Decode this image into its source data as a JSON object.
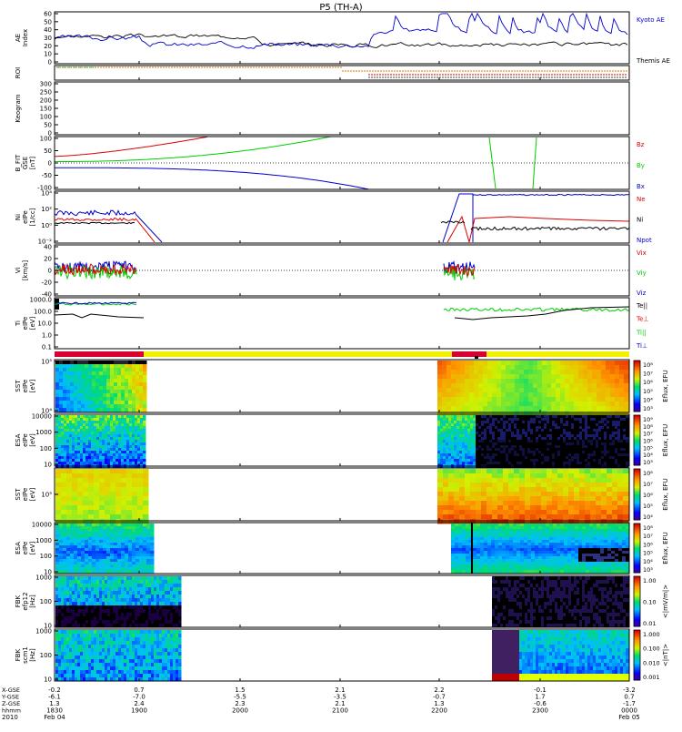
{
  "title": "P5 (TH-A)",
  "colors": {
    "red": "#dd0000",
    "green": "#00cc00",
    "blue": "#0000cc",
    "black": "#000000",
    "orange": "#e07800",
    "yellow": "#f2f200",
    "barred": "#d80030"
  },
  "chart_data": {
    "type": "multi-panel time series",
    "time_axis": {
      "range": [
        "1830",
        "0000"
      ],
      "ticks": [
        "1900",
        "2000",
        "2100",
        "2200",
        "2300",
        "0000"
      ],
      "dates": {
        "start": "Feb 04",
        "end": "Feb 05"
      },
      "year": "2010",
      "row_labels": [
        "X-GSE",
        "Y-GSE",
        "Z-GSE",
        "hhmm"
      ],
      "ephemeris": [
        {
          "time": "1830",
          "x": "-0.2",
          "y": "-6.1",
          "z": "1.3"
        },
        {
          "time": "1900",
          "x": "0.7",
          "y": "-7.0",
          "z": "2.4"
        },
        {
          "time": "2000",
          "x": "1.5",
          "y": "-5.5",
          "z": "2.3"
        },
        {
          "time": "2100",
          "x": "2.1",
          "y": "-3.5",
          "z": "2.1"
        },
        {
          "time": "2200",
          "x": "2.2",
          "y": "-0.7",
          "z": "1.3"
        },
        {
          "time": "2300",
          "x": "-0.1",
          "y": "1.7",
          "z": "-0.6"
        },
        {
          "time": "0000",
          "x": "-3.2",
          "y": "0.7",
          "z": "-1.7"
        }
      ]
    },
    "panels": [
      {
        "id": "ae",
        "ylabel": "AE Index",
        "yticks": [
          "60",
          "50",
          "40",
          "30",
          "20",
          "10",
          "0"
        ],
        "legend": [
          "Kyoto AE",
          "Themis AE"
        ],
        "type": "line"
      },
      {
        "id": "roi",
        "ylabel": "ROI",
        "type": "status"
      },
      {
        "id": "keogram",
        "ylabel": "Keogram",
        "yticks": [
          "300",
          "250",
          "200",
          "150",
          "100",
          "50",
          "0"
        ],
        "type": "empty"
      },
      {
        "id": "bfit",
        "ylabel": "B_FIT GSE [nT]",
        "yticks": [
          "100",
          "50",
          "0",
          "-50",
          "-100"
        ],
        "legend": [
          "Bz",
          "By",
          "Bx"
        ],
        "type": "line"
      },
      {
        "id": "ni",
        "ylabel": "Ni eIPe [1/cc]",
        "yticks": [
          "10⁴",
          "10²",
          "10⁰",
          "10⁻²"
        ],
        "legend": [
          "Ne",
          "Ni",
          "Npot"
        ],
        "type": "line",
        "scale": "log"
      },
      {
        "id": "vi",
        "ylabel": "Vi [km/s]",
        "yticks": [
          "40",
          "20",
          "0",
          "-20",
          "-40"
        ],
        "legend": [
          "Vix",
          "Viy",
          "Viz"
        ],
        "type": "line"
      },
      {
        "id": "ti",
        "ylabel": "Ti eIPe [eV]",
        "yticks": [
          "1000.0",
          "100.0",
          "10.0",
          "1.0",
          "0.1"
        ],
        "legend": [
          "Te||",
          "Te⊥",
          "Ti||",
          "Ti⊥"
        ],
        "type": "line",
        "scale": "log"
      },
      {
        "id": "sst_e",
        "ylabel": "SST eIPe [eV]",
        "yticks": [
          "10⁵",
          "10⁴"
        ],
        "colorbar": {
          "label": "Eflux, EFU",
          "ticks": [
            "10⁸",
            "10⁷",
            "10⁶",
            "10⁵",
            "10⁴",
            "10³"
          ]
        },
        "type": "spectrogram"
      },
      {
        "id": "esa_e",
        "ylabel": "ESA eIPe [eV]",
        "yticks": [
          "10000",
          "1000",
          "100",
          "10"
        ],
        "colorbar": {
          "label": "Eflux, EFU",
          "ticks": [
            "10⁹",
            "10⁸",
            "10⁷",
            "10⁶",
            "10⁵",
            "10⁴",
            "10³"
          ]
        },
        "type": "spectrogram"
      },
      {
        "id": "sst_i",
        "ylabel": "SST eIPe [eV]",
        "yticks": [
          "10⁵"
        ],
        "colorbar": {
          "label": "Eflux, EFU",
          "ticks": [
            "10⁸",
            "10⁷",
            "10⁶",
            "10⁵",
            "10⁴"
          ]
        },
        "type": "spectrogram"
      },
      {
        "id": "esa_i",
        "ylabel": "ESA eIPe [eV]",
        "yticks": [
          "10000",
          "1000",
          "100",
          "10"
        ],
        "colorbar": {
          "label": "Eflux, EFU",
          "ticks": [
            "10⁸",
            "10⁷",
            "10⁶",
            "10⁵",
            "10⁴",
            "10³"
          ]
        },
        "type": "spectrogram"
      },
      {
        "id": "fbk_e",
        "ylabel": "FBK efp12 [Hz]",
        "yticks": [
          "1000",
          "100",
          "10"
        ],
        "colorbar": {
          "label": "<|mV/m|>",
          "ticks": [
            "1.00",
            "0.10",
            "0.01"
          ]
        },
        "type": "spectrogram"
      },
      {
        "id": "fbk_b",
        "ylabel": "FBK scm1 [Hz]",
        "yticks": [
          "1000",
          "100",
          "10"
        ],
        "colorbar": {
          "label": "<|nT|>",
          "ticks": [
            "1.000",
            "0.100",
            "0.010",
            "0.001"
          ]
        },
        "type": "spectrogram"
      }
    ]
  }
}
